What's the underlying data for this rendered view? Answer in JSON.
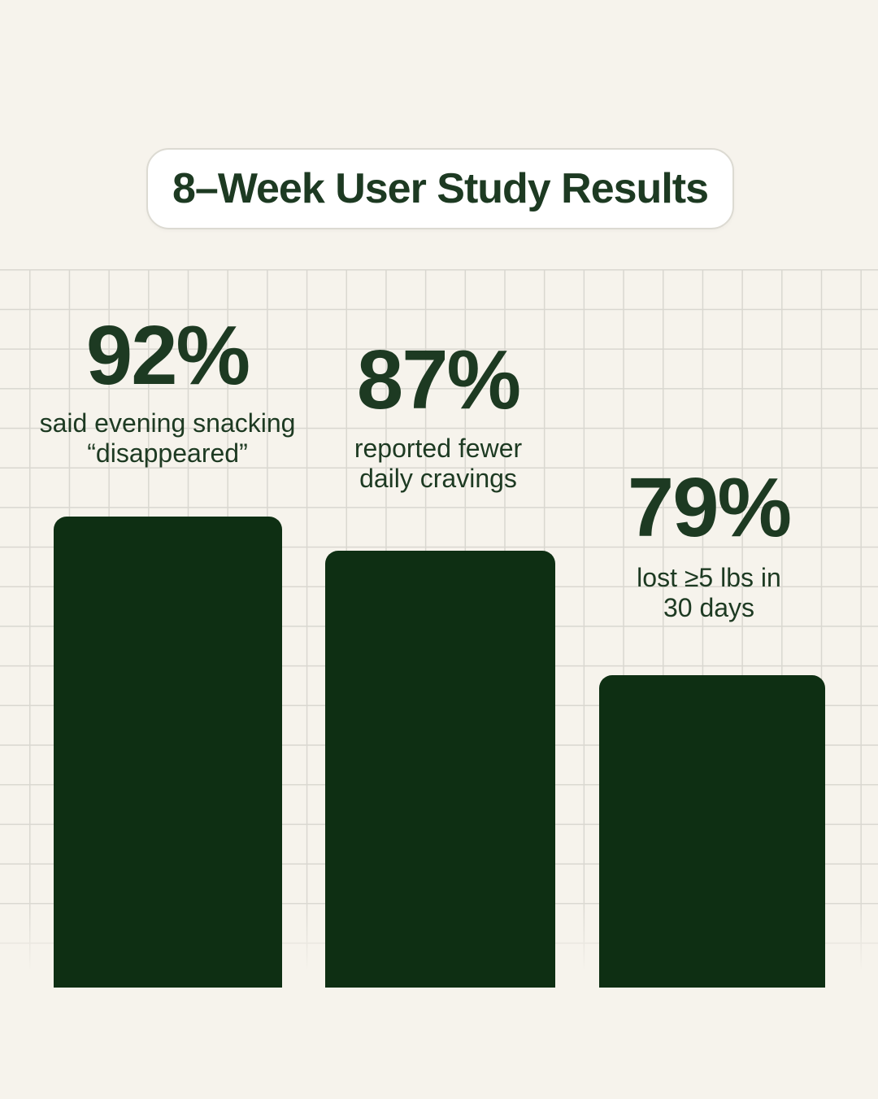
{
  "header": {
    "title": "8–Week User Study Results"
  },
  "stats": [
    {
      "value": "92%",
      "label_line1": "said evening snacking",
      "label_line2": "“disappeared”"
    },
    {
      "value": "87%",
      "label_line1": "reported fewer",
      "label_line2": "daily cravings"
    },
    {
      "value": "79%",
      "label_line1": "lost ≥5 lbs in",
      "label_line2": "30 days"
    }
  ],
  "chart_data": {
    "type": "bar",
    "title": "8–Week User Study Results",
    "categories": [
      "said evening snacking “disappeared”",
      "reported fewer daily cravings",
      "lost ≥5 lbs in 30 days"
    ],
    "values": [
      92,
      87,
      79
    ],
    "value_labels": [
      "92%",
      "87%",
      "79%"
    ],
    "xlabel": "",
    "ylabel": "",
    "ylim": [
      0,
      100
    ],
    "grid": "light square grid background",
    "legend": "none",
    "bar_color": "#0e2f13",
    "text_color": "#1d3a22",
    "background_color": "#f6f3ec",
    "grid_line_color": "#d9d7d0"
  }
}
